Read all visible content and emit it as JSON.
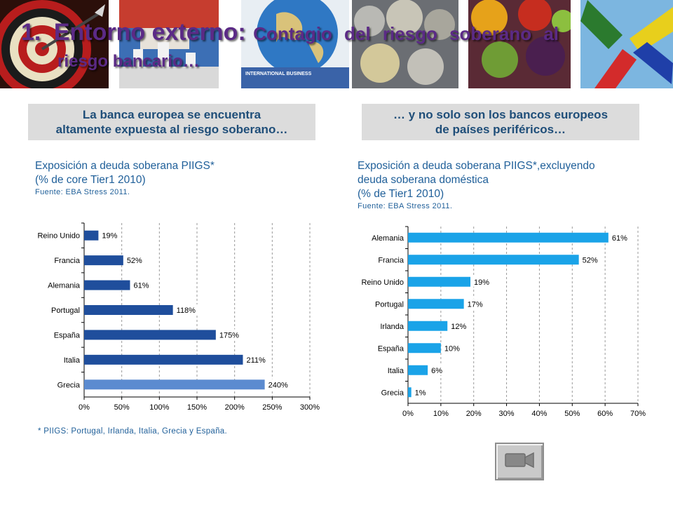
{
  "title": {
    "number": "1.",
    "part1": "Entorno externo:",
    "part2": "Contagio del riesgo soberano al",
    "line2": "riesgo bancario…"
  },
  "left_header": {
    "line1": "La banca europea se encuentra",
    "line2": "altamente expuesta al riesgo soberano…"
  },
  "right_header": {
    "line1": "… y no solo son los bancos europeos",
    "line2": "de países periféricos…"
  },
  "left_caption": {
    "line1": "Exposición a deuda soberana PIIGS*",
    "line2": "(% de core Tier1 2010)",
    "source": "Fuente: EBA Stress 2011."
  },
  "right_caption": {
    "line1": "Exposición a deuda soberana PIIGS*,excluyendo",
    "line2": "deuda soberana doméstica",
    "line3": "(% de Tier1 2010)",
    "source": "Fuente: EBA Stress 2011."
  },
  "footnote": "* PIIGS: Portugal, Irlanda, Italia, Grecia y España.",
  "nav_button": {
    "icon": "camera-icon"
  },
  "colors": {
    "title": "#5b2a86",
    "text": "#1f5f99",
    "bar_left": "#1f4e9c",
    "bar_left_highlight": "#5b8bd0",
    "bar_right": "#1aa3e8",
    "header_bg": "#dcdcdc"
  },
  "chart_data": [
    {
      "type": "bar",
      "orientation": "horizontal",
      "categories": [
        "Reino Unido",
        "Francia",
        "Alemania",
        "Portugal",
        "España",
        "Italia",
        "Grecia"
      ],
      "values": [
        19,
        52,
        61,
        118,
        175,
        211,
        240
      ],
      "data_labels": [
        "19%",
        "52%",
        "61%",
        "118%",
        "175%",
        "211%",
        "240%"
      ],
      "xlim": [
        0,
        300
      ],
      "xticks": [
        "0%",
        "50%",
        "100%",
        "150%",
        "200%",
        "250%",
        "300%"
      ],
      "highlight": "Grecia",
      "grid": "vertical dashed"
    },
    {
      "type": "bar",
      "orientation": "horizontal",
      "categories": [
        "Alemania",
        "Francia",
        "Reino Unido",
        "Portugal",
        "Irlanda",
        "España",
        "Italia",
        "Grecia"
      ],
      "values": [
        61,
        52,
        19,
        17,
        12,
        10,
        6,
        1
      ],
      "data_labels": [
        "61%",
        "52%",
        "19%",
        "17%",
        "12%",
        "10%",
        "6%",
        "1%"
      ],
      "xlim": [
        0,
        70
      ],
      "xticks": [
        "0%",
        "10%",
        "20%",
        "30%",
        "40%",
        "50%",
        "60%",
        "70%"
      ],
      "grid": "vertical dashed"
    }
  ]
}
